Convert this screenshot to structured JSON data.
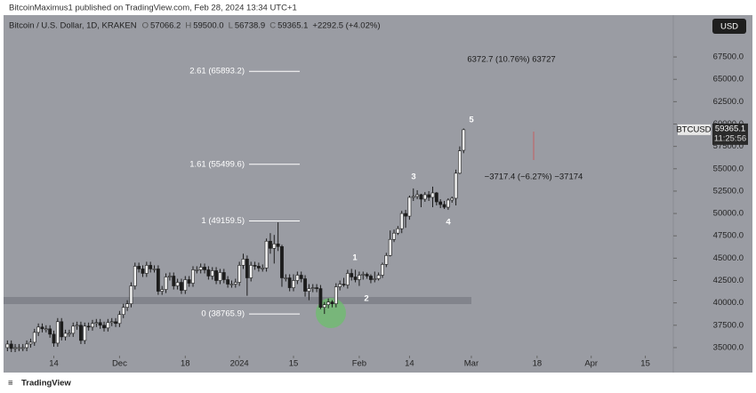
{
  "header": {
    "publisher": "BitcoinMaximus1 published on TradingView.com, Feb 28, 2024 13:34 UTC+1",
    "symbol_line": "Bitcoin / U.S. Dollar, 1D, KRAKEN",
    "ohlc_legend": [
      {
        "key": "O",
        "value": "57066.2"
      },
      {
        "key": "H",
        "value": "59500.0"
      },
      {
        "key": "L",
        "value": "56738.9"
      },
      {
        "key": "C",
        "value": "59365.1"
      }
    ],
    "change": "+2292.5 (+4.02%)"
  },
  "currency_button": "USD",
  "price_tag": {
    "symbol": "BTCUSD",
    "price": "59365.1",
    "countdown": "11:25:56"
  },
  "footer": "TradingView",
  "chart_data": {
    "type": "candlestick",
    "x": [
      "2023-11-02",
      "2023-11-03",
      "2023-11-04",
      "2023-11-05",
      "2023-11-06",
      "2023-11-07",
      "2023-11-08",
      "2023-11-09",
      "2023-11-10",
      "2023-11-11",
      "2023-11-12",
      "2023-11-13",
      "2023-11-14",
      "2023-11-15",
      "2023-11-16",
      "2023-11-17",
      "2023-11-18",
      "2023-11-19",
      "2023-11-20",
      "2023-11-21",
      "2023-11-22",
      "2023-11-23",
      "2023-11-24",
      "2023-11-25",
      "2023-11-26",
      "2023-11-27",
      "2023-11-28",
      "2023-11-29",
      "2023-11-30",
      "2023-12-01",
      "2023-12-02",
      "2023-12-03",
      "2023-12-04",
      "2023-12-05",
      "2023-12-06",
      "2023-12-07",
      "2023-12-08",
      "2023-12-09",
      "2023-12-10",
      "2023-12-11",
      "2023-12-12",
      "2023-12-13",
      "2023-12-14",
      "2023-12-15",
      "2023-12-16",
      "2023-12-17",
      "2023-12-18",
      "2023-12-19",
      "2023-12-20",
      "2023-12-21",
      "2023-12-22",
      "2023-12-23",
      "2023-12-24",
      "2023-12-25",
      "2023-12-26",
      "2023-12-27",
      "2023-12-28",
      "2023-12-29",
      "2023-12-30",
      "2023-12-31",
      "2024-01-01",
      "2024-01-02",
      "2024-01-03",
      "2024-01-04",
      "2024-01-05",
      "2024-01-06",
      "2024-01-07",
      "2024-01-08",
      "2024-01-09",
      "2024-01-10",
      "2024-01-11",
      "2024-01-12",
      "2024-01-13",
      "2024-01-14",
      "2024-01-15",
      "2024-01-16",
      "2024-01-17",
      "2024-01-18",
      "2024-01-19",
      "2024-01-20",
      "2024-01-21",
      "2024-01-22",
      "2024-01-23",
      "2024-01-24",
      "2024-01-25",
      "2024-01-26",
      "2024-01-27",
      "2024-01-28",
      "2024-01-29",
      "2024-01-30",
      "2024-01-31",
      "2024-02-01",
      "2024-02-02",
      "2024-02-03",
      "2024-02-04",
      "2024-02-05",
      "2024-02-06",
      "2024-02-07",
      "2024-02-08",
      "2024-02-09",
      "2024-02-10",
      "2024-02-11",
      "2024-02-12",
      "2024-02-13",
      "2024-02-14",
      "2024-02-15",
      "2024-02-16",
      "2024-02-17",
      "2024-02-18",
      "2024-02-19",
      "2024-02-20",
      "2024-02-21",
      "2024-02-22",
      "2024-02-23",
      "2024-02-24",
      "2024-02-25",
      "2024-02-26",
      "2024-02-27",
      "2024-02-28"
    ],
    "open": [
      35000,
      35400,
      34900,
      35000,
      35000,
      35000,
      35400,
      35600,
      36700,
      37300,
      37100,
      37100,
      36500,
      35500,
      37900,
      36200,
      36600,
      36600,
      37400,
      37500,
      35800,
      37400,
      37300,
      37700,
      37800,
      37500,
      37200,
      37800,
      37900,
      37700,
      38700,
      39500,
      39900,
      41900,
      44100,
      43800,
      43300,
      44200,
      43800,
      43800,
      41300,
      41500,
      42900,
      43000,
      41900,
      42300,
      41400,
      42600,
      42200,
      43700,
      43700,
      44000,
      43700,
      43000,
      43600,
      42500,
      43400,
      42600,
      42100,
      42100,
      42300,
      44200,
      44900,
      42800,
      44200,
      44100,
      43900,
      43900,
      46900,
      46100,
      46600,
      46300,
      42800,
      42800,
      41700,
      42500,
      43100,
      42700,
      41300,
      41600,
      41700,
      41600,
      39500,
      39800,
      40100,
      39900,
      41800,
      42100,
      42000,
      43300,
      42900,
      42600,
      43100,
      43200,
      43000,
      42600,
      42700,
      43100,
      44300,
      45300,
      47100,
      47800,
      48300,
      50000,
      49700,
      51800,
      51900,
      52100,
      51600,
      52100,
      51800,
      52300,
      51300,
      51000,
      50700,
      51500,
      51700,
      54500,
      57066.2
    ],
    "high": [
      35800,
      35800,
      35400,
      35400,
      35400,
      35800,
      36000,
      37100,
      37700,
      37700,
      37500,
      37500,
      36900,
      38300,
      38300,
      37000,
      37000,
      37800,
      37900,
      37900,
      37800,
      37800,
      38100,
      38200,
      38200,
      37900,
      38200,
      38300,
      38300,
      39100,
      39900,
      40300,
      42300,
      44500,
      44500,
      44200,
      44600,
      44600,
      44200,
      44200,
      41900,
      43300,
      43400,
      43400,
      42700,
      42700,
      43000,
      43000,
      44100,
      44100,
      44400,
      44400,
      44100,
      44000,
      44000,
      43800,
      43800,
      43000,
      42500,
      42700,
      44600,
      45500,
      45300,
      44600,
      44600,
      44500,
      44300,
      47200,
      47800,
      47600,
      49000,
      46500,
      43200,
      43200,
      43200,
      43500,
      43500,
      43100,
      42100,
      42100,
      42100,
      42000,
      40100,
      40500,
      40300,
      42200,
      42500,
      42800,
      43700,
      43800,
      43700,
      43500,
      43500,
      43400,
      43200,
      43500,
      43400,
      44500,
      45600,
      48100,
      48200,
      48600,
      50300,
      50400,
      52000,
      52800,
      52600,
      52200,
      52400,
      52500,
      53000,
      52400,
      51600,
      51400,
      51700,
      51900,
      54900,
      57500,
      59500
    ],
    "low": [
      34600,
      34500,
      34500,
      34600,
      34600,
      34600,
      35000,
      35200,
      36300,
      36700,
      36700,
      36100,
      35100,
      35100,
      35800,
      35800,
      36200,
      36200,
      37000,
      35400,
      35400,
      36900,
      36900,
      37300,
      37100,
      36800,
      36800,
      37400,
      37300,
      37300,
      38300,
      39100,
      39500,
      41500,
      43400,
      42900,
      42900,
      43400,
      43400,
      40900,
      40900,
      41100,
      42500,
      41500,
      41500,
      41000,
      41000,
      41800,
      41800,
      43300,
      43300,
      43300,
      42600,
      42600,
      42100,
      42100,
      42200,
      41700,
      41700,
      41700,
      41900,
      43800,
      40800,
      42400,
      43700,
      43500,
      43500,
      43500,
      45500,
      44400,
      45800,
      41800,
      42400,
      41300,
      41300,
      42100,
      42300,
      40700,
      40300,
      41200,
      41200,
      39300,
      38765.9,
      39400,
      39500,
      39500,
      41400,
      41800,
      41600,
      42500,
      42300,
      41900,
      42600,
      42700,
      42200,
      42300,
      42500,
      42800,
      44000,
      45200,
      46800,
      47600,
      47800,
      48400,
      49300,
      51400,
      51600,
      50700,
      51300,
      51400,
      50700,
      50900,
      50600,
      50500,
      50400,
      51200,
      50900,
      54400,
      56738.9
    ],
    "close": [
      35400,
      34900,
      35000,
      35000,
      35000,
      35400,
      35600,
      36700,
      37300,
      37100,
      37100,
      36500,
      35500,
      37900,
      36200,
      36600,
      36600,
      37400,
      37500,
      35800,
      37400,
      37300,
      37700,
      37800,
      37500,
      37200,
      37800,
      37900,
      37700,
      38700,
      39500,
      39900,
      41900,
      44100,
      43800,
      43300,
      44200,
      43800,
      43800,
      41300,
      41500,
      42900,
      43000,
      41900,
      42300,
      41400,
      42600,
      42200,
      43700,
      43700,
      44000,
      43700,
      43000,
      43600,
      42500,
      43400,
      42600,
      42100,
      42100,
      42300,
      44200,
      44900,
      42800,
      44200,
      44100,
      43900,
      43900,
      46900,
      46100,
      46600,
      46300,
      42800,
      42800,
      41700,
      42500,
      43100,
      42700,
      41300,
      41600,
      41700,
      41600,
      39500,
      39800,
      40100,
      39900,
      41800,
      42100,
      42000,
      43300,
      42900,
      42600,
      43100,
      43200,
      43000,
      42600,
      42700,
      43100,
      44300,
      45300,
      47100,
      47800,
      48300,
      50000,
      49700,
      51800,
      51900,
      52100,
      51600,
      52100,
      51800,
      52300,
      51300,
      51000,
      50700,
      51500,
      51700,
      54500,
      57000,
      59365.1
    ],
    "up_color": "#f2f2f2",
    "down_color": "#1c1c1c",
    "xlim": [
      "2023-11-01",
      "2024-04-22"
    ],
    "xticks": [
      {
        "value": "2023-11-14",
        "label": "14"
      },
      {
        "value": "2023-12-01",
        "label": "Dec"
      },
      {
        "value": "2023-12-18",
        "label": "18"
      },
      {
        "value": "2024-01-01",
        "label": "2024"
      },
      {
        "value": "2024-01-15",
        "label": "15"
      },
      {
        "value": "2024-02-01",
        "label": "Feb"
      },
      {
        "value": "2024-02-14",
        "label": "14"
      },
      {
        "value": "2024-03-01",
        "label": "Mar"
      },
      {
        "value": "2024-03-18",
        "label": "18"
      },
      {
        "value": "2024-04-01",
        "label": "Apr"
      },
      {
        "value": "2024-04-15",
        "label": "15"
      }
    ],
    "ylim": [
      34100,
      72180
    ],
    "yticks": [
      {
        "value": 35000,
        "label": "35000.0"
      },
      {
        "value": 37500,
        "label": "37500.0"
      },
      {
        "value": 40000,
        "label": "40000.0"
      },
      {
        "value": 42500,
        "label": "42500.0"
      },
      {
        "value": 45000,
        "label": "45000.0"
      },
      {
        "value": 47500,
        "label": "47500.0"
      },
      {
        "value": 50000,
        "label": "50000.0"
      },
      {
        "value": 52500,
        "label": "52500.0"
      },
      {
        "value": 55000,
        "label": "55000.0"
      },
      {
        "value": 57500,
        "label": "57500.0"
      },
      {
        "value": 60000,
        "label": "60000.0"
      },
      {
        "value": 62500,
        "label": "62500.0"
      },
      {
        "value": 65000,
        "label": "65000.0"
      },
      {
        "value": 67500,
        "label": "67500.0"
      }
    ],
    "grid": false,
    "fib_levels": [
      {
        "label": "2.61 (65893.2)",
        "value": 65893.2
      },
      {
        "label": "1.61 (55499.6)",
        "value": 55499.6
      },
      {
        "label": "1 (49159.5)",
        "value": 49159.5
      },
      {
        "label": "0 (38765.9)",
        "value": 38765.9
      }
    ],
    "wave_labels": [
      "1",
      "2",
      "3",
      "4",
      "5"
    ],
    "annotations": [
      "6372.7 (10.76%) 63727",
      "−3717.4 (−6.27%) −37174"
    ]
  }
}
